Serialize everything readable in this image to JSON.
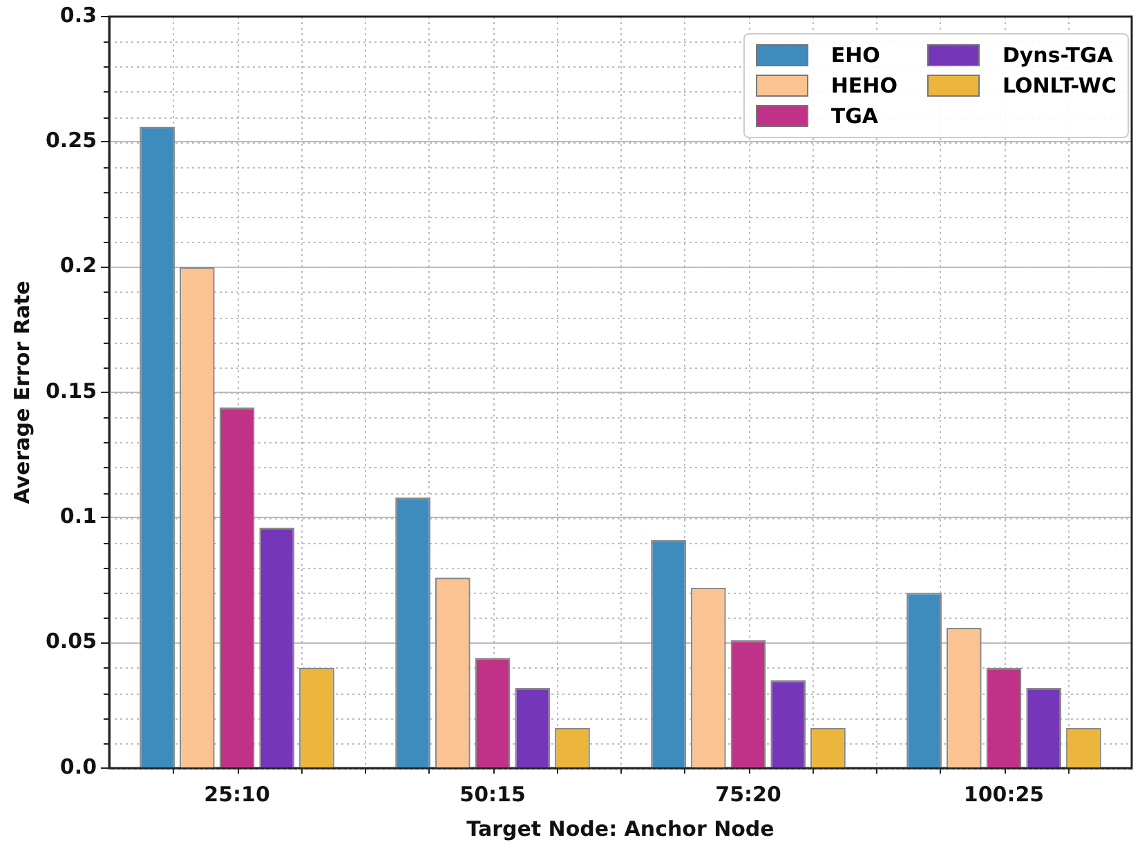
{
  "chart_data": {
    "type": "bar",
    "xlabel": "Target Node: Anchor Node",
    "ylabel": "Average Error Rate",
    "categories": [
      "25:10",
      "50:15",
      "75:20",
      "100:25"
    ],
    "series": [
      {
        "name": "EHO",
        "color": "#3e8bbd",
        "values": [
          0.256,
          0.108,
          0.091,
          0.07
        ]
      },
      {
        "name": "HEHO",
        "color": "#fbc391",
        "values": [
          0.2,
          0.076,
          0.072,
          0.056
        ]
      },
      {
        "name": "TGA",
        "color": "#c03288",
        "values": [
          0.144,
          0.044,
          0.051,
          0.04
        ]
      },
      {
        "name": "Dyns-TGA",
        "color": "#7536b9",
        "values": [
          0.096,
          0.032,
          0.035,
          0.032
        ]
      },
      {
        "name": "LONLT-WC",
        "color": "#ecb63c",
        "values": [
          0.04,
          0.016,
          0.016,
          0.016
        ]
      }
    ],
    "ylim": [
      0,
      0.3
    ],
    "yticks": [
      {
        "value": 0,
        "label": "0.0"
      },
      0.05,
      0.1,
      0.15,
      0.2,
      0.25,
      0.3
    ],
    "grid": true,
    "legend": "top right"
  }
}
